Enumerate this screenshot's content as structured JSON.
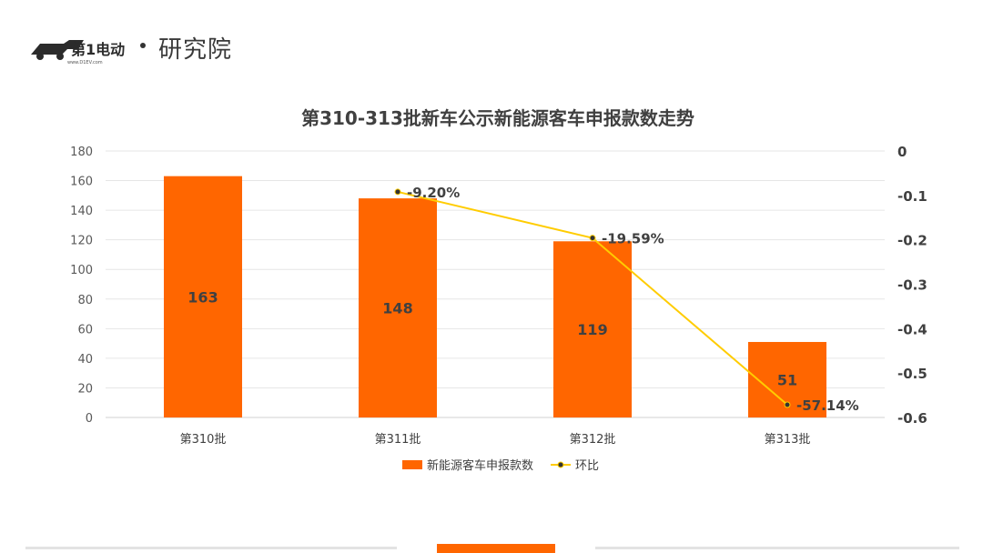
{
  "brand": {
    "logo_label": "第1电动",
    "logo_url_text": "www.D1EV.com",
    "sub_label": "研究院"
  },
  "chart_data": {
    "type": "bar",
    "title": "第310-313批新车公示新能源客车申报款数走势",
    "categories": [
      "第310批",
      "第311批",
      "第312批",
      "第313批"
    ],
    "series": [
      {
        "name": "新能源客车申报款数",
        "type": "bar",
        "axis": "left",
        "color": "#ff6600",
        "values": [
          163,
          148,
          119,
          51
        ],
        "data_labels": [
          "163",
          "148",
          "119",
          "51"
        ]
      },
      {
        "name": "环比",
        "type": "line",
        "axis": "right",
        "color": "#ffcc00",
        "values": [
          null,
          -0.092,
          -0.1959,
          -0.5714
        ],
        "data_labels": [
          "",
          "-9.20%",
          "-19.59%",
          "-57.14%"
        ]
      }
    ],
    "y_left": {
      "min": 0,
      "max": 180,
      "ticks": [
        "0",
        "20",
        "40",
        "60",
        "80",
        "100",
        "120",
        "140",
        "160",
        "180"
      ]
    },
    "y_right": {
      "min": -0.6,
      "max": 0,
      "ticks": [
        "0",
        "-0.1",
        "-0.2",
        "-0.3",
        "-0.4",
        "-0.5",
        "-0.6"
      ]
    },
    "grid": true,
    "legend_position": "bottom"
  }
}
